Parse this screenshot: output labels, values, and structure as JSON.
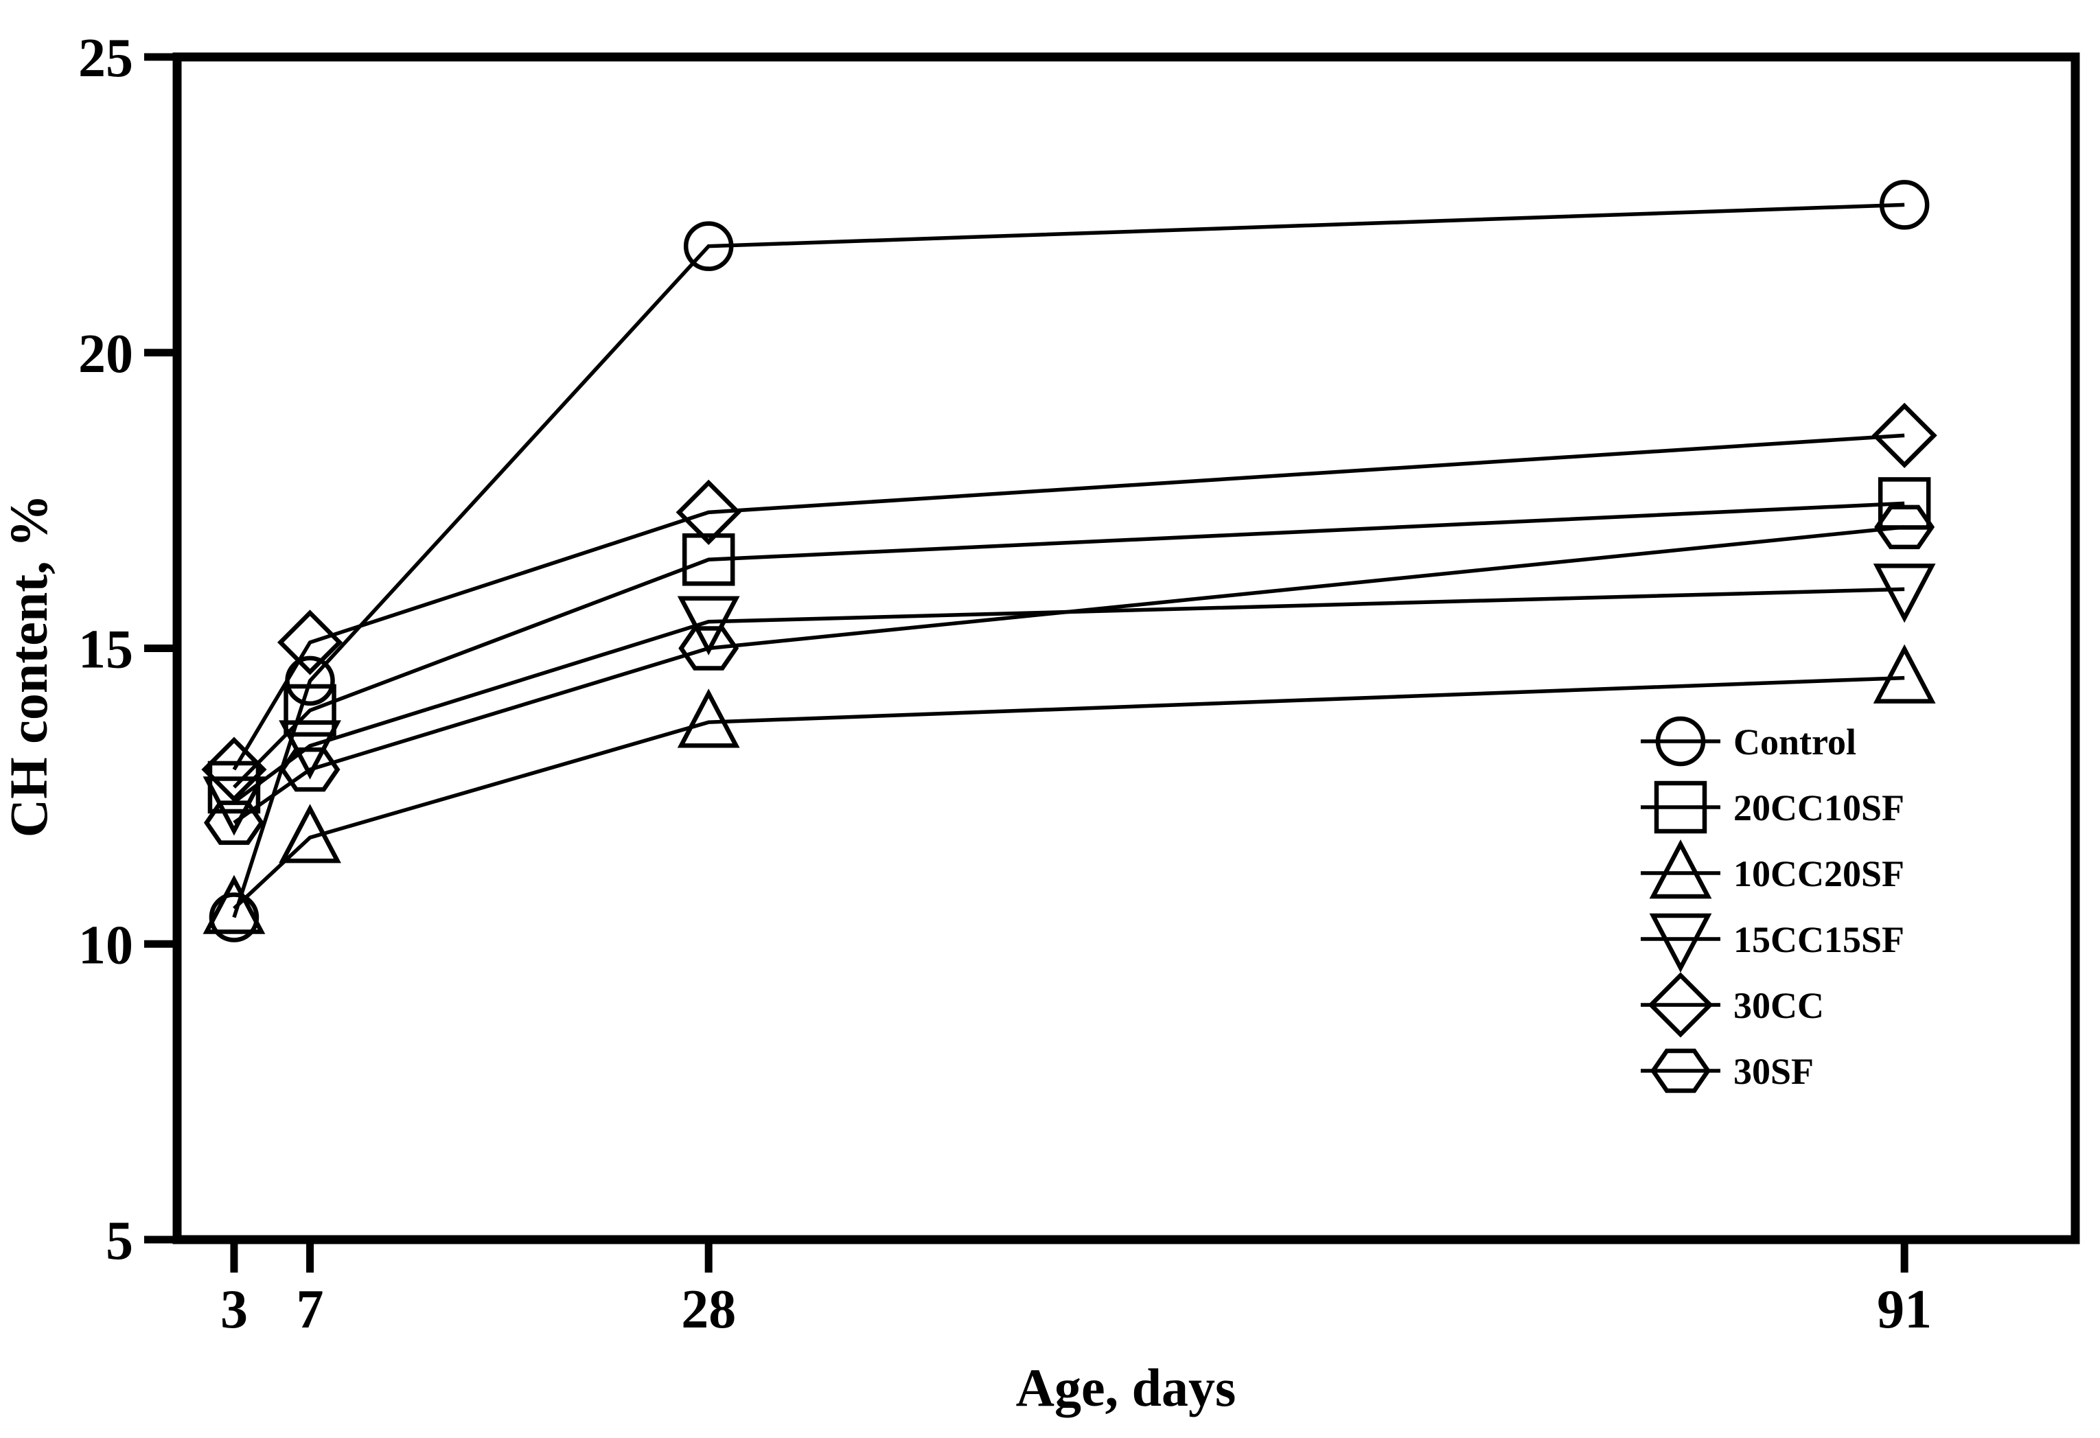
{
  "figure": {
    "x_axis_title": "Age, days",
    "y_axis_title": "CH content, %"
  },
  "chart_data": {
    "type": "line",
    "x": [
      3,
      7,
      28,
      91
    ],
    "x_ticks": [
      3,
      7,
      28,
      91
    ],
    "y_ticks": [
      5,
      10,
      15,
      20,
      25
    ],
    "xlim": [
      0,
      100
    ],
    "ylim": [
      5,
      25
    ],
    "xlabel": "Age, days",
    "ylabel": "CH content, %",
    "grid": false,
    "legend_position": "inside-right",
    "colors": {
      "line": "#000000",
      "marker_fill": "none",
      "background": "#ffffff"
    },
    "series": [
      {
        "name": "Control",
        "marker": "circle",
        "values": [
          10.45,
          14.45,
          21.8,
          22.5
        ]
      },
      {
        "name": "20CC10SF",
        "marker": "square",
        "values": [
          12.65,
          13.95,
          16.5,
          17.45
        ]
      },
      {
        "name": "10CC20SF",
        "marker": "triangle-up",
        "values": [
          10.6,
          11.8,
          13.75,
          14.5
        ]
      },
      {
        "name": "15CC15SF",
        "marker": "triangle-down",
        "values": [
          12.4,
          13.35,
          15.45,
          16.0
        ]
      },
      {
        "name": "30CC",
        "marker": "diamond",
        "values": [
          12.95,
          15.1,
          17.3,
          18.6
        ]
      },
      {
        "name": "30SF",
        "marker": "hexagon",
        "values": [
          12.05,
          12.95,
          15.0,
          17.05
        ]
      }
    ]
  }
}
